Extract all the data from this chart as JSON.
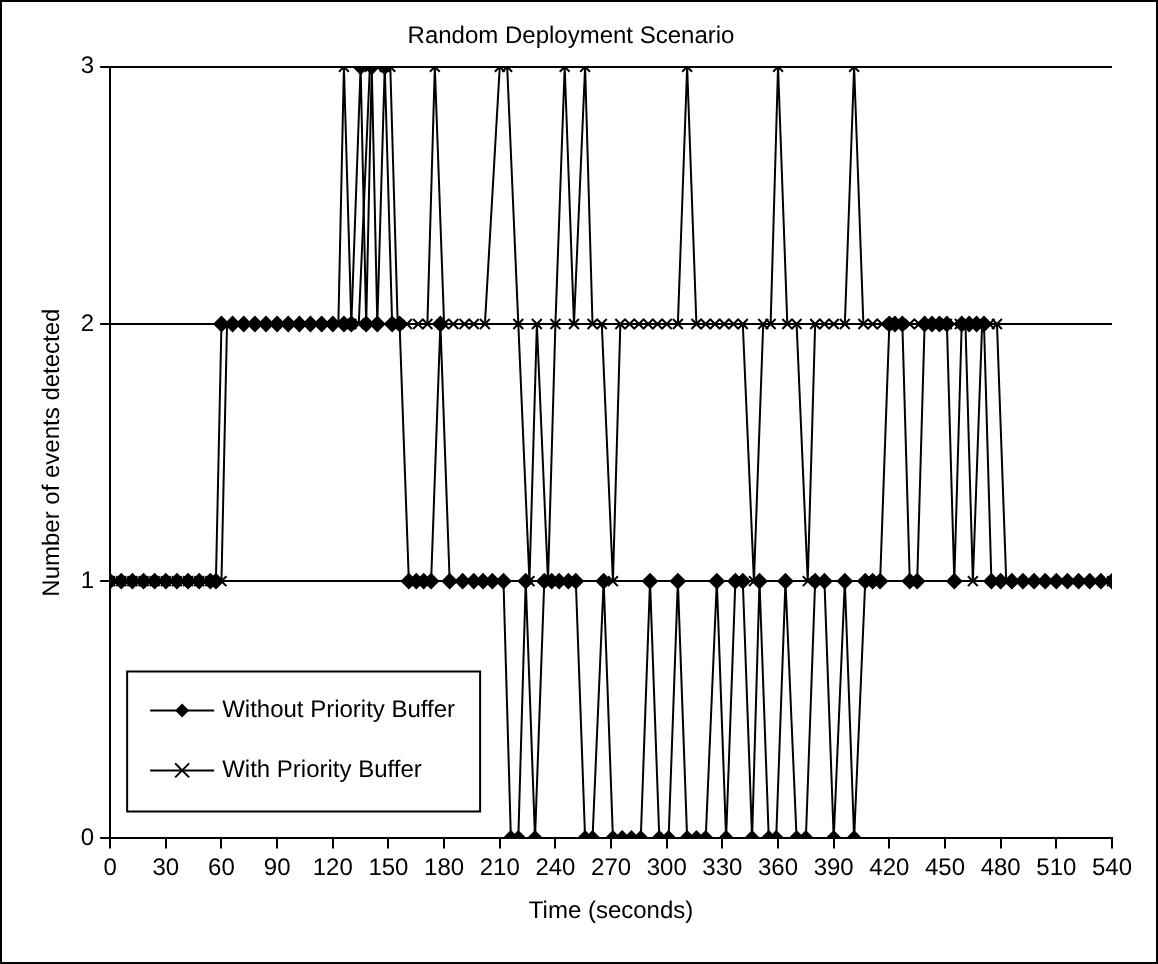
{
  "chart_data": {
    "type": "line",
    "title": "Random Deployment Scenario",
    "xlabel": "Time (seconds)",
    "ylabel": "Number of events detected",
    "xlim": [
      0,
      540
    ],
    "xticks": [
      0,
      30,
      60,
      90,
      120,
      150,
      180,
      210,
      240,
      270,
      300,
      330,
      360,
      390,
      420,
      450,
      480,
      510,
      540
    ],
    "ylim": [
      0,
      3
    ],
    "yticks": [
      0,
      1,
      2,
      3
    ],
    "grid": "y",
    "legend": "bottom left",
    "line_style": "solid",
    "series": [
      {
        "name": "Without Priority Buffer",
        "color": "#000000",
        "marker": "diamond",
        "x": [
          0,
          6,
          12,
          18,
          24,
          30,
          36,
          42,
          48,
          54,
          57,
          60,
          66,
          72,
          78,
          84,
          90,
          96,
          102,
          108,
          114,
          120,
          126,
          130,
          135,
          138,
          141,
          144,
          148,
          152,
          156,
          161,
          165,
          169,
          173,
          178,
          183,
          190,
          196,
          201,
          206,
          212,
          216,
          220,
          224,
          229,
          234,
          238,
          242,
          247,
          251,
          256,
          260,
          266,
          271,
          276,
          281,
          286,
          291,
          296,
          301,
          306,
          311,
          316,
          321,
          327,
          332,
          337,
          341,
          346,
          350,
          355,
          359,
          364,
          370,
          375,
          380,
          385,
          390,
          396,
          401,
          407,
          411,
          415,
          420,
          423,
          427,
          431,
          435,
          439,
          443,
          447,
          451,
          455,
          459,
          463,
          467,
          471,
          475,
          480,
          486,
          492,
          498,
          504,
          510,
          516,
          522,
          528,
          534,
          540
        ],
        "values": [
          1,
          1,
          1,
          1,
          1,
          1,
          1,
          1,
          1,
          1,
          1,
          2,
          2,
          2,
          2,
          2,
          2,
          2,
          2,
          2,
          2,
          2,
          2,
          2,
          3,
          2,
          3,
          2,
          3,
          2,
          2,
          1,
          1,
          1,
          1,
          2,
          1,
          1,
          1,
          1,
          1,
          1,
          0,
          0,
          1,
          0,
          1,
          1,
          1,
          1,
          1,
          0,
          0,
          1,
          0,
          0,
          0,
          0,
          1,
          0,
          0,
          1,
          0,
          0,
          0,
          1,
          0,
          1,
          1,
          0,
          1,
          0,
          0,
          1,
          0,
          0,
          1,
          1,
          0,
          1,
          0,
          1,
          1,
          1,
          2,
          2,
          2,
          1,
          1,
          2,
          2,
          2,
          2,
          1,
          2,
          2,
          2,
          2,
          1,
          1,
          1,
          1,
          1,
          1,
          1,
          1,
          1,
          1,
          1,
          1
        ]
      },
      {
        "name": "With Priority Buffer",
        "color": "#000000",
        "marker": "cross",
        "x": [
          0,
          6,
          12,
          18,
          24,
          30,
          36,
          42,
          48,
          54,
          60,
          63,
          69,
          75,
          81,
          87,
          93,
          99,
          105,
          111,
          117,
          123,
          126,
          130,
          134,
          140,
          144,
          148,
          151,
          155,
          160,
          166,
          171,
          175,
          180,
          185,
          191,
          196,
          202,
          210,
          214,
          220,
          226,
          230,
          236,
          240,
          245,
          250,
          256,
          260,
          265,
          271,
          275,
          280,
          285,
          290,
          295,
          300,
          306,
          311,
          316,
          321,
          326,
          331,
          336,
          341,
          347,
          352,
          356,
          360,
          365,
          370,
          376,
          380,
          385,
          390,
          396,
          401,
          406,
          411,
          416,
          421,
          426,
          431,
          436,
          441,
          446,
          451,
          458,
          461,
          465,
          470,
          474,
          478,
          483,
          489,
          495,
          501,
          507,
          513,
          519,
          525,
          531,
          537,
          540
        ],
        "values": [
          1,
          1,
          1,
          1,
          1,
          1,
          1,
          1,
          1,
          1,
          1,
          2,
          2,
          2,
          2,
          2,
          2,
          2,
          2,
          2,
          2,
          2,
          3,
          2,
          2,
          3,
          3,
          3,
          3,
          2,
          2,
          2,
          2,
          3,
          2,
          2,
          2,
          2,
          2,
          3,
          3,
          2,
          1,
          2,
          1,
          2,
          3,
          2,
          3,
          2,
          2,
          1,
          2,
          2,
          2,
          2,
          2,
          2,
          2,
          3,
          2,
          2,
          2,
          2,
          2,
          2,
          1,
          2,
          2,
          3,
          2,
          2,
          1,
          2,
          2,
          2,
          2,
          3,
          2,
          2,
          2,
          2,
          2,
          2,
          2,
          2,
          2,
          2,
          2,
          2,
          1,
          2,
          2,
          2,
          1,
          1,
          1,
          1,
          1,
          1,
          1,
          1,
          1,
          1,
          1
        ]
      }
    ]
  }
}
